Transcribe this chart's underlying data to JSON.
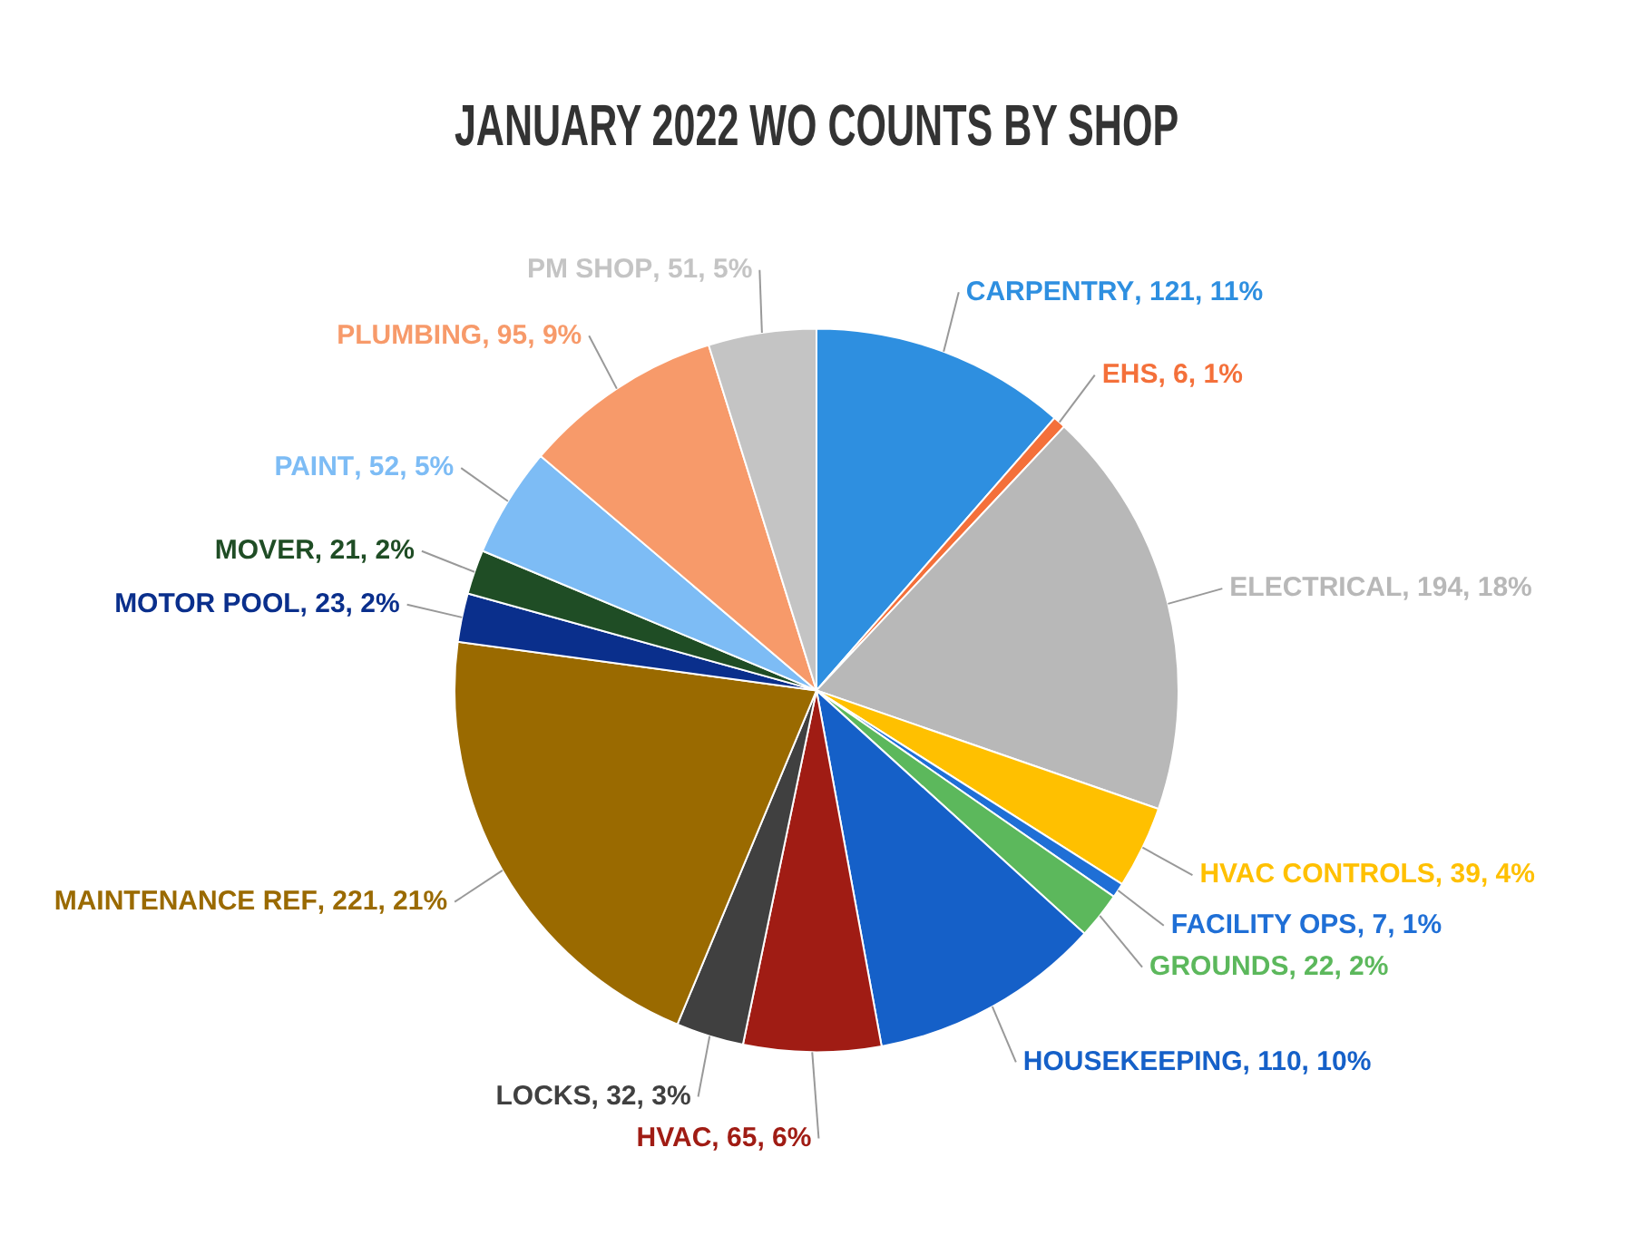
{
  "chart_data": {
    "type": "pie",
    "title": "JANUARY 2022 WO COUNTS BY SHOP",
    "categories": [
      "CARPENTRY",
      "EHS",
      "ELECTRICAL",
      "HVAC CONTROLS",
      "FACILITY OPS",
      "GROUNDS",
      "HOUSEKEEPING",
      "HVAC",
      "LOCKS",
      "MAINTENANCE REF",
      "MOTOR POOL",
      "MOVER",
      "PAINT",
      "PLUMBING",
      "PM SHOP"
    ],
    "values": [
      121,
      6,
      194,
      39,
      7,
      22,
      110,
      65,
      32,
      221,
      23,
      21,
      52,
      95,
      51
    ],
    "value_labels": [
      ", 121, 11%",
      ", 6, 1%",
      ", 194, 18%",
      ", 39, 4%",
      ", 7, 1%",
      ", 22, 2%",
      ", 110, 10%",
      ", 65, 6%",
      ", 32, 3%",
      ", 221, 21%",
      ", 23, 2%",
      ", 21, 2%",
      ", 52, 5%",
      ", 95, 9%",
      ", 51, 5%"
    ],
    "colors": [
      "#2e8fe0",
      "#f4703a",
      "#b8b8b8",
      "#ffc000",
      "#1f6fd6",
      "#5cb85c",
      "#1560c8",
      "#a01c14",
      "#404040",
      "#9a6a00",
      "#0a2f8c",
      "#1f4d25",
      "#7dbcf5",
      "#f79a6a",
      "#c4c4c4"
    ],
    "legend": false
  }
}
